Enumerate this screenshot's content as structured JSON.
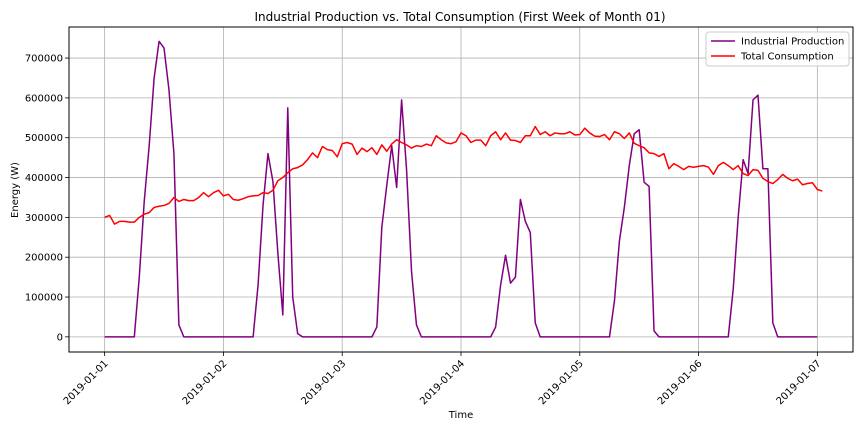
{
  "chart_data": {
    "type": "line",
    "title": "Industrial Production vs. Total Consumption (First Week of Month 01)",
    "xlabel": "Time",
    "ylabel": "Energy (W)",
    "xlim": [
      "2018-12-31T16:48",
      "2019-01-07T07:12"
    ],
    "ylim": [
      -38000,
      778000
    ],
    "x_ticks": [
      "2019-01-01",
      "2019-01-02",
      "2019-01-03",
      "2019-01-04",
      "2019-01-05",
      "2019-01-06",
      "2019-01-07"
    ],
    "y_ticks": [
      0,
      100000,
      200000,
      300000,
      400000,
      500000,
      600000,
      700000
    ],
    "y_tick_labels": [
      "0",
      "100000",
      "200000",
      "300000",
      "400000",
      "500000",
      "600000",
      "700000"
    ],
    "grid": true,
    "legend_position": "top-right",
    "series": [
      {
        "name": "Industrial Production",
        "color": "#800080",
        "points": [
          [
            "2019-01-01T00:00",
            0
          ],
          [
            "2019-01-01T06:00",
            0
          ],
          [
            "2019-01-01T07:00",
            150000
          ],
          [
            "2019-01-01T08:00",
            340000
          ],
          [
            "2019-01-01T09:00",
            480000
          ],
          [
            "2019-01-01T10:00",
            650000
          ],
          [
            "2019-01-01T11:00",
            742000
          ],
          [
            "2019-01-01T12:00",
            725000
          ],
          [
            "2019-01-01T13:00",
            620000
          ],
          [
            "2019-01-01T14:00",
            460000
          ],
          [
            "2019-01-01T15:00",
            30000
          ],
          [
            "2019-01-01T16:00",
            0
          ],
          [
            "2019-01-02T06:00",
            0
          ],
          [
            "2019-01-02T07:00",
            130000
          ],
          [
            "2019-01-02T08:00",
            330000
          ],
          [
            "2019-01-02T09:00",
            460000
          ],
          [
            "2019-01-02T10:00",
            390000
          ],
          [
            "2019-01-02T11:00",
            210000
          ],
          [
            "2019-01-02T12:00",
            55000
          ],
          [
            "2019-01-02T13:00",
            575000
          ],
          [
            "2019-01-02T14:00",
            100000
          ],
          [
            "2019-01-02T15:00",
            8000
          ],
          [
            "2019-01-02T16:00",
            0
          ],
          [
            "2019-01-03T06:00",
            0
          ],
          [
            "2019-01-03T07:00",
            25000
          ],
          [
            "2019-01-03T08:00",
            275000
          ],
          [
            "2019-01-03T09:00",
            380000
          ],
          [
            "2019-01-03T10:00",
            480000
          ],
          [
            "2019-01-03T11:00",
            375000
          ],
          [
            "2019-01-03T12:00",
            595000
          ],
          [
            "2019-01-03T13:00",
            420000
          ],
          [
            "2019-01-03T14:00",
            165000
          ],
          [
            "2019-01-03T15:00",
            30000
          ],
          [
            "2019-01-03T16:00",
            0
          ],
          [
            "2019-01-04T06:00",
            0
          ],
          [
            "2019-01-04T07:00",
            25000
          ],
          [
            "2019-01-04T08:00",
            130000
          ],
          [
            "2019-01-04T09:00",
            205000
          ],
          [
            "2019-01-04T10:00",
            135000
          ],
          [
            "2019-01-04T11:00",
            150000
          ],
          [
            "2019-01-04T12:00",
            345000
          ],
          [
            "2019-01-04T13:00",
            290000
          ],
          [
            "2019-01-04T14:00",
            262000
          ],
          [
            "2019-01-04T15:00",
            35000
          ],
          [
            "2019-01-04T16:00",
            0
          ],
          [
            "2019-01-05T06:00",
            0
          ],
          [
            "2019-01-05T07:00",
            90000
          ],
          [
            "2019-01-05T08:00",
            240000
          ],
          [
            "2019-01-05T09:00",
            325000
          ],
          [
            "2019-01-05T10:00",
            430000
          ],
          [
            "2019-01-05T11:00",
            510000
          ],
          [
            "2019-01-05T12:00",
            520000
          ],
          [
            "2019-01-05T13:00",
            388000
          ],
          [
            "2019-01-05T14:00",
            378000
          ],
          [
            "2019-01-05T15:00",
            15000
          ],
          [
            "2019-01-05T16:00",
            0
          ],
          [
            "2019-01-06T06:00",
            0
          ],
          [
            "2019-01-06T07:00",
            120000
          ],
          [
            "2019-01-06T08:00",
            300000
          ],
          [
            "2019-01-06T09:00",
            445000
          ],
          [
            "2019-01-06T10:00",
            410000
          ],
          [
            "2019-01-06T11:00",
            595000
          ],
          [
            "2019-01-06T12:00",
            607000
          ],
          [
            "2019-01-06T13:00",
            422000
          ],
          [
            "2019-01-06T14:00",
            422000
          ],
          [
            "2019-01-06T15:00",
            35000
          ],
          [
            "2019-01-06T16:00",
            0
          ],
          [
            "2019-01-07T00:00",
            0
          ]
        ]
      },
      {
        "name": "Total Consumption",
        "color": "#ff0000",
        "points": [
          [
            "2019-01-01T00:00",
            300000
          ],
          [
            "2019-01-01T01:00",
            305000
          ],
          [
            "2019-01-01T02:00",
            283000
          ],
          [
            "2019-01-01T03:00",
            290000
          ],
          [
            "2019-01-01T04:00",
            290000
          ],
          [
            "2019-01-01T05:00",
            288000
          ],
          [
            "2019-01-01T06:00",
            288000
          ],
          [
            "2019-01-01T07:00",
            300000
          ],
          [
            "2019-01-01T08:00",
            308000
          ],
          [
            "2019-01-01T09:00",
            312000
          ],
          [
            "2019-01-01T10:00",
            325000
          ],
          [
            "2019-01-01T11:00",
            328000
          ],
          [
            "2019-01-01T12:00",
            330000
          ],
          [
            "2019-01-01T13:00",
            335000
          ],
          [
            "2019-01-01T14:00",
            350000
          ],
          [
            "2019-01-01T15:00",
            340000
          ],
          [
            "2019-01-01T16:00",
            345000
          ],
          [
            "2019-01-01T17:00",
            342000
          ],
          [
            "2019-01-01T18:00",
            342000
          ],
          [
            "2019-01-01T19:00",
            350000
          ],
          [
            "2019-01-01T20:00",
            362000
          ],
          [
            "2019-01-01T21:00",
            352000
          ],
          [
            "2019-01-01T22:00",
            362000
          ],
          [
            "2019-01-01T23:00",
            368000
          ],
          [
            "2019-01-02T00:00",
            354000
          ],
          [
            "2019-01-02T01:00",
            358000
          ],
          [
            "2019-01-02T02:00",
            345000
          ],
          [
            "2019-01-02T03:00",
            343000
          ],
          [
            "2019-01-02T04:00",
            347000
          ],
          [
            "2019-01-02T05:00",
            352000
          ],
          [
            "2019-01-02T06:00",
            354000
          ],
          [
            "2019-01-02T07:00",
            355000
          ],
          [
            "2019-01-02T08:00",
            362000
          ],
          [
            "2019-01-02T09:00",
            360000
          ],
          [
            "2019-01-02T10:00",
            368000
          ],
          [
            "2019-01-02T11:00",
            392000
          ],
          [
            "2019-01-02T12:00",
            400000
          ],
          [
            "2019-01-02T13:00",
            412000
          ],
          [
            "2019-01-02T14:00",
            422000
          ],
          [
            "2019-01-02T15:00",
            425000
          ],
          [
            "2019-01-02T16:00",
            432000
          ],
          [
            "2019-01-02T17:00",
            445000
          ],
          [
            "2019-01-02T18:00",
            462000
          ],
          [
            "2019-01-02T19:00",
            450000
          ],
          [
            "2019-01-02T20:00",
            478000
          ],
          [
            "2019-01-02T21:00",
            470000
          ],
          [
            "2019-01-02T22:00",
            468000
          ],
          [
            "2019-01-02T23:00",
            452000
          ],
          [
            "2019-01-03T00:00",
            485000
          ],
          [
            "2019-01-03T01:00",
            488000
          ],
          [
            "2019-01-03T02:00",
            484000
          ],
          [
            "2019-01-03T03:00",
            458000
          ],
          [
            "2019-01-03T04:00",
            474000
          ],
          [
            "2019-01-03T05:00",
            465000
          ],
          [
            "2019-01-03T06:00",
            475000
          ],
          [
            "2019-01-03T07:00",
            458000
          ],
          [
            "2019-01-03T08:00",
            482000
          ],
          [
            "2019-01-03T09:00",
            466000
          ],
          [
            "2019-01-03T10:00",
            484000
          ],
          [
            "2019-01-03T11:00",
            495000
          ],
          [
            "2019-01-03T12:00",
            488000
          ],
          [
            "2019-01-03T13:00",
            482000
          ],
          [
            "2019-01-03T14:00",
            474000
          ],
          [
            "2019-01-03T15:00",
            480000
          ],
          [
            "2019-01-03T16:00",
            478000
          ],
          [
            "2019-01-03T17:00",
            484000
          ],
          [
            "2019-01-03T18:00",
            480000
          ],
          [
            "2019-01-03T19:00",
            505000
          ],
          [
            "2019-01-03T20:00",
            495000
          ],
          [
            "2019-01-03T21:00",
            487000
          ],
          [
            "2019-01-03T22:00",
            485000
          ],
          [
            "2019-01-03T23:00",
            490000
          ],
          [
            "2019-01-04T00:00",
            512000
          ],
          [
            "2019-01-04T01:00",
            505000
          ],
          [
            "2019-01-04T02:00",
            488000
          ],
          [
            "2019-01-04T03:00",
            494000
          ],
          [
            "2019-01-04T04:00",
            494000
          ],
          [
            "2019-01-04T05:00",
            480000
          ],
          [
            "2019-01-04T06:00",
            505000
          ],
          [
            "2019-01-04T07:00",
            515000
          ],
          [
            "2019-01-04T08:00",
            495000
          ],
          [
            "2019-01-04T09:00",
            512000
          ],
          [
            "2019-01-04T10:00",
            494000
          ],
          [
            "2019-01-04T11:00",
            493000
          ],
          [
            "2019-01-04T12:00",
            488000
          ],
          [
            "2019-01-04T13:00",
            505000
          ],
          [
            "2019-01-04T14:00",
            505000
          ],
          [
            "2019-01-04T15:00",
            528000
          ],
          [
            "2019-01-04T16:00",
            508000
          ],
          [
            "2019-01-04T17:00",
            515000
          ],
          [
            "2019-01-04T18:00",
            505000
          ],
          [
            "2019-01-04T19:00",
            512000
          ],
          [
            "2019-01-04T20:00",
            510000
          ],
          [
            "2019-01-04T21:00",
            510000
          ],
          [
            "2019-01-04T22:00",
            515000
          ],
          [
            "2019-01-04T23:00",
            507000
          ],
          [
            "2019-01-05T00:00",
            508000
          ],
          [
            "2019-01-05T01:00",
            524000
          ],
          [
            "2019-01-05T02:00",
            512000
          ],
          [
            "2019-01-05T03:00",
            504000
          ],
          [
            "2019-01-05T04:00",
            503000
          ],
          [
            "2019-01-05T05:00",
            508000
          ],
          [
            "2019-01-05T06:00",
            495000
          ],
          [
            "2019-01-05T07:00",
            515000
          ],
          [
            "2019-01-05T08:00",
            510000
          ],
          [
            "2019-01-05T09:00",
            498000
          ],
          [
            "2019-01-05T10:00",
            512000
          ],
          [
            "2019-01-05T11:00",
            486000
          ],
          [
            "2019-01-05T12:00",
            480000
          ],
          [
            "2019-01-05T13:00",
            475000
          ],
          [
            "2019-01-05T14:00",
            462000
          ],
          [
            "2019-01-05T15:00",
            460000
          ],
          [
            "2019-01-05T16:00",
            453000
          ],
          [
            "2019-01-05T17:00",
            460000
          ],
          [
            "2019-01-05T18:00",
            422000
          ],
          [
            "2019-01-05T19:00",
            435000
          ],
          [
            "2019-01-05T20:00",
            428000
          ],
          [
            "2019-01-05T21:00",
            420000
          ],
          [
            "2019-01-05T22:00",
            428000
          ],
          [
            "2019-01-05T23:00",
            426000
          ],
          [
            "2019-01-06T00:00",
            428000
          ],
          [
            "2019-01-06T01:00",
            430000
          ],
          [
            "2019-01-06T02:00",
            426000
          ],
          [
            "2019-01-06T03:00",
            408000
          ],
          [
            "2019-01-06T04:00",
            430000
          ],
          [
            "2019-01-06T05:00",
            438000
          ],
          [
            "2019-01-06T06:00",
            430000
          ],
          [
            "2019-01-06T07:00",
            420000
          ],
          [
            "2019-01-06T08:00",
            430000
          ],
          [
            "2019-01-06T09:00",
            410000
          ],
          [
            "2019-01-06T10:00",
            405000
          ],
          [
            "2019-01-06T11:00",
            420000
          ],
          [
            "2019-01-06T12:00",
            418000
          ],
          [
            "2019-01-06T13:00",
            398000
          ],
          [
            "2019-01-06T14:00",
            390000
          ],
          [
            "2019-01-06T15:00",
            385000
          ],
          [
            "2019-01-06T16:00",
            395000
          ],
          [
            "2019-01-06T17:00",
            408000
          ],
          [
            "2019-01-06T18:00",
            398000
          ],
          [
            "2019-01-06T19:00",
            392000
          ],
          [
            "2019-01-06T20:00",
            396000
          ],
          [
            "2019-01-06T21:00",
            382000
          ],
          [
            "2019-01-06T22:00",
            385000
          ],
          [
            "2019-01-06T23:00",
            387000
          ],
          [
            "2019-01-07T00:00",
            370000
          ],
          [
            "2019-01-07T01:00",
            366000
          ]
        ]
      }
    ]
  }
}
